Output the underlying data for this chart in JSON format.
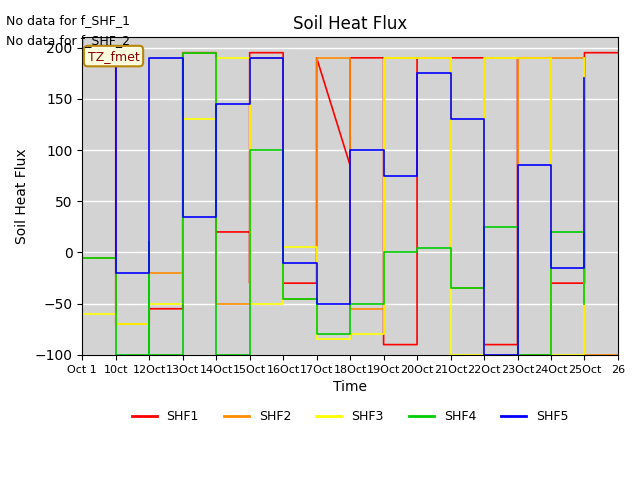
{
  "title": "Soil Heat Flux",
  "ylabel": "Soil Heat Flux",
  "xlabel": "Time",
  "text_top_left": [
    "No data for f_SHF_1",
    "No data for f_SHF_2"
  ],
  "legend_label": "TZ_fmet",
  "ylim": [
    -100,
    210
  ],
  "yticks": [
    -100,
    -50,
    0,
    50,
    100,
    150,
    200
  ],
  "xtick_labels": [
    "Oct 1",
    "10ct",
    "12Oct",
    "13Oct",
    "14Oct",
    "15Oct",
    "16Oct",
    "17Oct",
    "18Oct",
    "19Oct",
    "20Oct",
    "21Oct",
    "22Oct",
    "23Oct",
    "24Oct",
    "25Oct",
    "26"
  ],
  "background_color": "#d3d3d3",
  "grid_color": "#ffffff",
  "series": {
    "SHF1": {
      "color": "#ff0000",
      "x": [
        10,
        10,
        11,
        11,
        12,
        12,
        13,
        13,
        14,
        14,
        14,
        15,
        15,
        15,
        16,
        16,
        17,
        17,
        17,
        18,
        18,
        18,
        19,
        19,
        20,
        20,
        21,
        21,
        22,
        22,
        23,
        23,
        24,
        24,
        25,
        25,
        26
      ],
      "y": [
        190,
        200,
        200,
        -70,
        -70,
        -55,
        -55,
        195,
        195,
        115,
        20,
        20,
        -30,
        195,
        195,
        -30,
        -30,
        190,
        190,
        85,
        -35,
        190,
        190,
        -90,
        -90,
        190,
        190,
        190,
        190,
        -90,
        -90,
        190,
        190,
        -30,
        -30,
        195,
        195
      ]
    },
    "SHF2": {
      "color": "#ff8c00",
      "x": [
        10,
        10,
        11,
        11,
        12,
        12,
        13,
        13,
        14,
        14,
        15,
        15,
        16,
        16,
        17,
        17,
        18,
        18,
        19,
        19,
        20,
        20,
        21,
        21,
        22,
        22,
        23,
        23,
        24,
        24,
        25,
        25,
        26
      ],
      "y": [
        190,
        -5,
        -5,
        -70,
        -70,
        -20,
        -20,
        195,
        195,
        -50,
        -50,
        190,
        190,
        -45,
        -45,
        190,
        190,
        -55,
        -55,
        190,
        190,
        190,
        190,
        -35,
        -35,
        190,
        190,
        -100,
        -100,
        190,
        190,
        -100,
        -100
      ]
    },
    "SHF3": {
      "color": "#ffff00",
      "x": [
        10,
        10,
        11,
        11,
        12,
        12,
        13,
        13,
        14,
        14,
        15,
        15,
        16,
        16,
        17,
        17,
        18,
        18,
        19,
        19,
        20,
        20,
        21,
        21,
        22,
        22,
        23,
        23,
        24,
        24,
        25,
        25
      ],
      "y": [
        190,
        -60,
        -60,
        -70,
        -70,
        -50,
        -50,
        130,
        130,
        190,
        190,
        -50,
        -50,
        5,
        5,
        -85,
        -85,
        -80,
        -80,
        190,
        190,
        190,
        190,
        -100,
        -100,
        190,
        190,
        190,
        190,
        -100,
        -100,
        190
      ]
    },
    "SHF4": {
      "color": "#00cc00",
      "x": [
        10,
        10,
        11,
        11,
        12,
        12,
        12,
        13,
        13,
        14,
        14,
        15,
        15,
        16,
        16,
        17,
        17,
        18,
        18,
        19,
        19,
        20,
        20,
        21,
        21,
        22,
        22,
        23,
        23,
        24,
        24,
        25,
        25
      ],
      "y": [
        100,
        -5,
        -5,
        -100,
        -100,
        10,
        -100,
        -100,
        195,
        195,
        -100,
        -100,
        100,
        100,
        -45,
        -45,
        -80,
        -80,
        -50,
        -50,
        0,
        0,
        4,
        4,
        -35,
        -35,
        25,
        25,
        -100,
        -100,
        20,
        20,
        -50
      ]
    },
    "SHF5": {
      "color": "#0000ff",
      "x": [
        10,
        10,
        11,
        11,
        12,
        12,
        13,
        13,
        14,
        14,
        15,
        15,
        16,
        16,
        17,
        17,
        18,
        18,
        19,
        19,
        20,
        20,
        21,
        21,
        22,
        22,
        23,
        23,
        24,
        24,
        25,
        25
      ],
      "y": [
        190,
        190,
        190,
        -20,
        -20,
        190,
        190,
        35,
        35,
        145,
        145,
        190,
        190,
        -10,
        -10,
        -50,
        -50,
        100,
        100,
        75,
        75,
        175,
        175,
        130,
        130,
        -100,
        -100,
        85,
        85,
        -15,
        -15,
        170
      ]
    }
  }
}
